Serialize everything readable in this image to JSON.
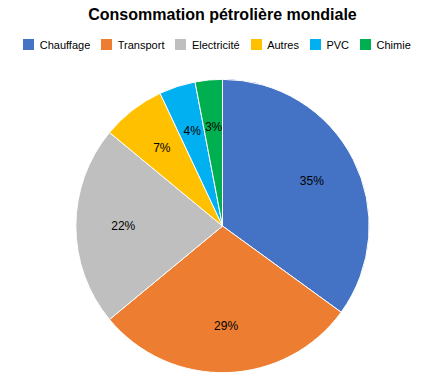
{
  "chart_data": {
    "type": "pie",
    "title": "Consommation pétrolière mondiale",
    "categories": [
      "Chauffage",
      "Transport",
      "Electricité",
      "Autres",
      "PVC",
      "Chimie"
    ],
    "values": [
      35,
      29,
      22,
      7,
      4,
      3
    ],
    "value_labels": [
      "35%",
      "29%",
      "22%",
      "7%",
      "4%",
      "3%"
    ],
    "colors": [
      "#4472C4",
      "#ED7D31",
      "#BFBFBF",
      "#FFC000",
      "#00B0F0",
      "#00B050"
    ],
    "data_labels": true,
    "legend": "top"
  }
}
